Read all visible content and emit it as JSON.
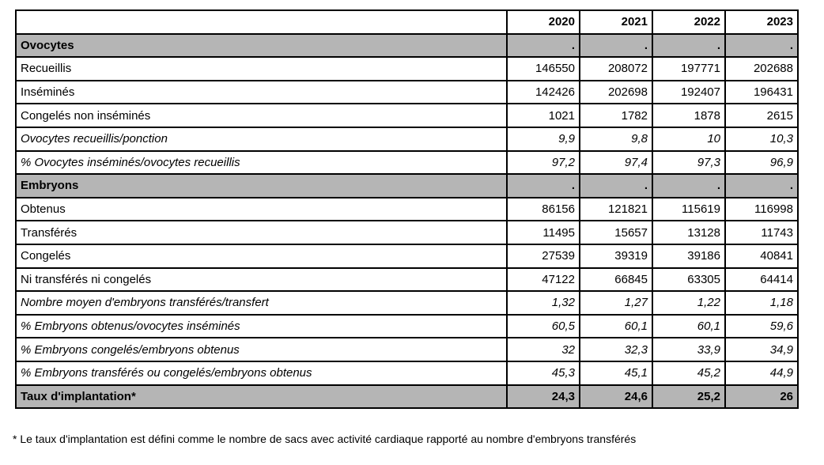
{
  "table": {
    "columns": [
      "",
      "2020",
      "2021",
      "2022",
      "2023"
    ],
    "rows": [
      {
        "label": "Ovocytes",
        "style": "section",
        "values": [
          ".",
          ".",
          ".",
          "."
        ]
      },
      {
        "label": "Recueillis",
        "style": "normal",
        "values": [
          "146550",
          "208072",
          "197771",
          "202688"
        ]
      },
      {
        "label": "Inséminés",
        "style": "normal",
        "values": [
          "142426",
          "202698",
          "192407",
          "196431"
        ]
      },
      {
        "label": "Congelés non inséminés",
        "style": "normal",
        "values": [
          "1021",
          "1782",
          "1878",
          "2615"
        ]
      },
      {
        "label": "Ovocytes recueillis/ponction",
        "style": "italic",
        "values": [
          "9,9",
          "9,8",
          "10",
          "10,3"
        ]
      },
      {
        "label": "% Ovocytes inséminés/ovocytes recueillis",
        "style": "italic",
        "values": [
          "97,2",
          "97,4",
          "97,3",
          "96,9"
        ]
      },
      {
        "label": "Embryons",
        "style": "section",
        "values": [
          ".",
          ".",
          ".",
          "."
        ]
      },
      {
        "label": "Obtenus",
        "style": "normal",
        "values": [
          "86156",
          "121821",
          "115619",
          "116998"
        ]
      },
      {
        "label": "Transférés",
        "style": "normal",
        "values": [
          "11495",
          "15657",
          "13128",
          "11743"
        ]
      },
      {
        "label": "Congelés",
        "style": "normal",
        "values": [
          "27539",
          "39319",
          "39186",
          "40841"
        ]
      },
      {
        "label": "Ni transférés ni congelés",
        "style": "normal",
        "values": [
          "47122",
          "66845",
          "63305",
          "64414"
        ]
      },
      {
        "label": "Nombre moyen d'embryons transférés/transfert",
        "style": "italic",
        "values": [
          "1,32",
          "1,27",
          "1,22",
          "1,18"
        ]
      },
      {
        "label": "% Embryons obtenus/ovocytes inséminés",
        "style": "italic",
        "values": [
          "60,5",
          "60,1",
          "60,1",
          "59,6"
        ]
      },
      {
        "label": "% Embryons congelés/embryons obtenus",
        "style": "italic",
        "values": [
          "32",
          "32,3",
          "33,9",
          "34,9"
        ]
      },
      {
        "label": "% Embryons transférés ou congelés/embryons obtenus",
        "style": "italic",
        "values": [
          "45,3",
          "45,1",
          "45,2",
          "44,9"
        ]
      },
      {
        "label": "Taux d'implantation*",
        "style": "total",
        "values": [
          "24,3",
          "24,6",
          "25,2",
          "26"
        ]
      }
    ]
  },
  "footnote": "* Le taux d'implantation est défini comme le nombre de sacs avec activité cardiaque rapporté au nombre d'embryons transférés",
  "colors": {
    "section_bg": "#b5b5b5",
    "border": "#000000",
    "background": "#ffffff"
  }
}
